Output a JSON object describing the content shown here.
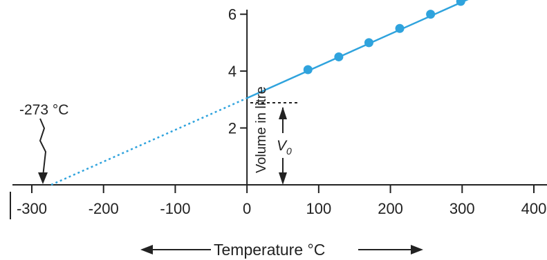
{
  "chart_data": {
    "type": "scatter",
    "title": "",
    "xlabel": "Temperature °C",
    "ylabel": "Volume in litre",
    "xlim": [
      -300,
      400
    ],
    "ylim": [
      0,
      6.5
    ],
    "grid": false,
    "x_ticks": [
      -300,
      -200,
      -100,
      0,
      100,
      200,
      300,
      400
    ],
    "x_tick_labels": [
      "-300",
      "-200",
      "-100",
      "0",
      "100",
      "200",
      "300",
      "400"
    ],
    "y_ticks": [
      2,
      4,
      6
    ],
    "y_tick_labels": [
      "2",
      "4",
      "6"
    ],
    "series": [
      {
        "x": [
          85,
          128,
          170,
          213,
          256,
          298
        ],
        "y": [
          4.05,
          4.5,
          5.0,
          5.5,
          6.0,
          6.45
        ],
        "color": "#2fa3dd"
      }
    ],
    "fit_line": {
      "x": [
        0,
        315
      ],
      "y": [
        3.05,
        6.6
      ],
      "style": "solid"
    },
    "extrapolation": {
      "x": [
        -273,
        0
      ],
      "y": [
        0,
        3.05
      ],
      "style": "dotted"
    },
    "annotations": {
      "absolute_zero": {
        "text": "-273 °C",
        "x": -273,
        "y": 0
      },
      "v0": {
        "text": "V",
        "subscript": "0",
        "x": 50,
        "y": 3.05
      }
    }
  }
}
